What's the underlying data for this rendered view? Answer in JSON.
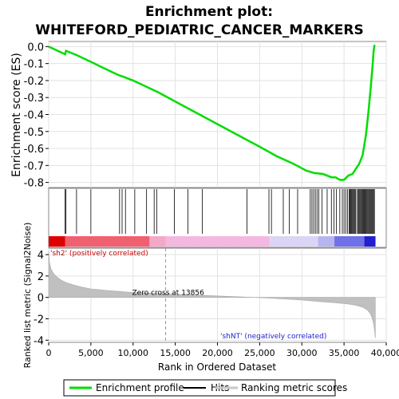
{
  "chart_data": {
    "type": "line",
    "title": "Enrichment plot:",
    "subtitle": "WHITEFORD_PEDIATRIC_CANCER_MARKERS",
    "xlabel": "Rank in Ordered Dataset",
    "xlim": [
      0,
      40000
    ],
    "x_ticks": [
      0,
      5000,
      10000,
      15000,
      20000,
      25000,
      30000,
      35000,
      40000
    ],
    "x_tick_labels": [
      "0",
      "5,000",
      "10,000",
      "15,000",
      "20,000",
      "25,000",
      "30,000",
      "35,000",
      "40,000"
    ],
    "top_panel": {
      "ylabel": "Enrichment score (ES)",
      "ylim": [
        -0.83,
        0.03
      ],
      "y_ticks": [
        0.0,
        -0.1,
        -0.2,
        -0.3,
        -0.4,
        -0.5,
        -0.6,
        -0.7,
        -0.8
      ],
      "y_tick_labels": [
        "0.0",
        "-0.1",
        "-0.2",
        "-0.3",
        "-0.4",
        "-0.5",
        "-0.6",
        "-0.7",
        "-0.8"
      ],
      "grid": true,
      "series": [
        {
          "name": "Enrichment profile",
          "color": "#00dd00",
          "x": [
            0,
            1950,
            2050,
            3300,
            5000,
            7500,
            8400,
            8700,
            10000,
            13000,
            16000,
            19000,
            22000,
            25000,
            27000,
            29000,
            30500,
            31500,
            32500,
            33500,
            34000,
            34500,
            35000,
            35500,
            36000,
            36400,
            36800,
            37200,
            37600,
            37900,
            38150,
            38400,
            38500,
            38600,
            38700
          ],
          "y": [
            0.0,
            -0.045,
            -0.025,
            -0.05,
            -0.09,
            -0.15,
            -0.17,
            -0.175,
            -0.2,
            -0.27,
            -0.35,
            -0.43,
            -0.51,
            -0.59,
            -0.645,
            -0.69,
            -0.73,
            -0.745,
            -0.75,
            -0.77,
            -0.77,
            -0.785,
            -0.785,
            -0.76,
            -0.75,
            -0.72,
            -0.69,
            -0.64,
            -0.52,
            -0.38,
            -0.25,
            -0.1,
            -0.03,
            0.005,
            0.005
          ]
        }
      ]
    },
    "hits": {
      "name": "Hits",
      "color": "#000000",
      "x": [
        1950,
        2050,
        3300,
        5000,
        8400,
        8700,
        9100,
        10200,
        11600,
        12500,
        12800,
        14900,
        16500,
        18200,
        23500,
        26100,
        26400,
        27800,
        28500,
        29500,
        31000,
        31200,
        31400,
        31600,
        31800,
        32000,
        32400,
        33000,
        33500,
        33800,
        34100,
        34500,
        34800,
        35000,
        35200,
        35400,
        35600,
        35700,
        35800,
        35900,
        36000,
        36100,
        36200,
        36300,
        36400,
        36600,
        36700,
        36800,
        36900,
        37000,
        37100,
        37200,
        37300,
        37400,
        37500,
        37600,
        37700,
        37800,
        37900,
        38000,
        38100,
        38200,
        38300,
        38400,
        38500,
        38600
      ]
    },
    "ranking_bar": {
      "positive_label": "'sh2' (positively correlated)",
      "negative_label": "'shNT' (negatively correlated)"
    },
    "bottom_panel": {
      "ylabel": "Ranked list metric (Signal2Noise)",
      "ylim": [
        -4.2,
        4.6
      ],
      "y_ticks": [
        4,
        2,
        0,
        -2,
        -4
      ],
      "y_tick_labels": [
        "4",
        "2",
        "0",
        "-2",
        "-4"
      ],
      "zero_cross_label": "Zero cross at 13856",
      "zero_cross": 13856,
      "positive_fill_end": 10000,
      "negative_fill_start": 26000,
      "metric_profile": {
        "x": [
          0,
          100,
          300,
          600,
          1000,
          1500,
          2000,
          3000,
          4000,
          5000,
          7000,
          8500,
          9500,
          10000,
          26000,
          28000,
          30000,
          32000,
          34000,
          35500,
          36500,
          37300,
          37800,
          38100,
          38300,
          38500,
          38600,
          38700
        ],
        "y": [
          4.3,
          3.2,
          2.6,
          2.2,
          1.9,
          1.6,
          1.4,
          1.15,
          0.95,
          0.8,
          0.65,
          0.55,
          0.48,
          0.45,
          -0.05,
          -0.15,
          -0.25,
          -0.38,
          -0.5,
          -0.62,
          -0.75,
          -0.95,
          -1.2,
          -1.5,
          -1.85,
          -2.4,
          -3.0,
          -3.8
        ]
      }
    },
    "legend": {
      "placement": "bottom",
      "items": [
        {
          "label": "Enrichment profile",
          "color": "#00dd00"
        },
        {
          "label": "Hits",
          "color": "#000000"
        },
        {
          "label": "Ranking metric scores",
          "color": "#c8c8c8"
        }
      ]
    }
  }
}
